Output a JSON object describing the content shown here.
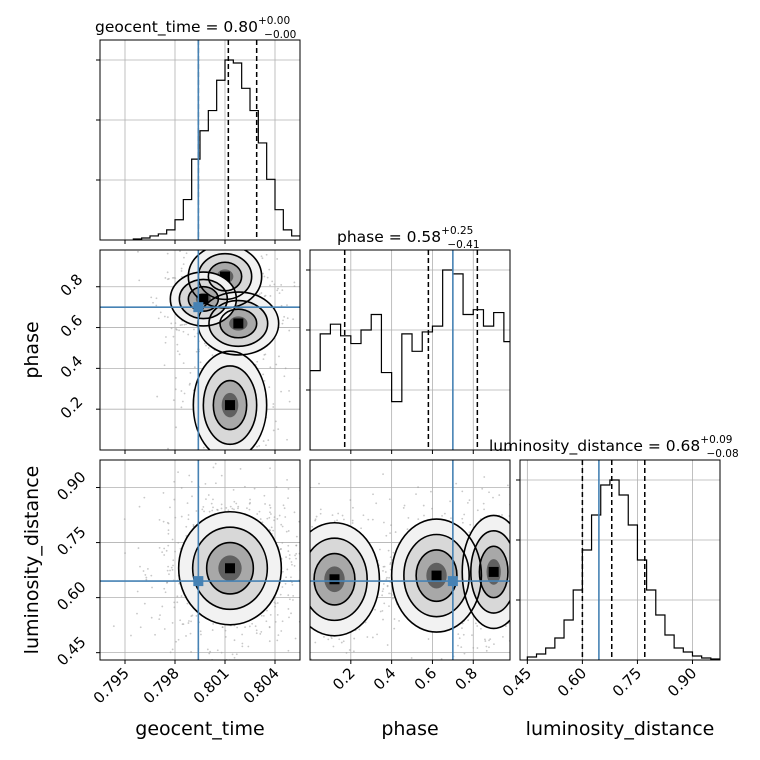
{
  "chart_data": {
    "type": "corner",
    "parameters": [
      "geocent_time",
      "phase",
      "luminosity_distance"
    ],
    "truths": {
      "geocent_time": 0.7994,
      "phase": 0.7,
      "luminosity_distance": 0.645
    },
    "truth_color": "#4682b4",
    "titles": [
      {
        "param": "geocent_time",
        "text": "geocent_time = 0.80",
        "plus": "+0.00",
        "minus": "−0.00"
      },
      {
        "param": "phase",
        "text": "phase = 0.58",
        "plus": "+0.25",
        "minus": "−0.41"
      },
      {
        "param": "luminosity_distance",
        "text": "luminosity_distance = 0.68",
        "plus": "+0.09",
        "minus": "−0.08"
      }
    ],
    "axes": {
      "geocent_time": {
        "range": [
          0.7935,
          0.8055
        ],
        "ticks": [
          "0.795",
          "0.798",
          "0.801",
          "0.804"
        ],
        "tick_values": [
          0.795,
          0.798,
          0.801,
          0.804
        ]
      },
      "phase": {
        "range": [
          0.0,
          0.98
        ],
        "ticks": [
          "0.2",
          "0.4",
          "0.6",
          "0.8"
        ],
        "tick_values": [
          0.2,
          0.4,
          0.6,
          0.8
        ]
      },
      "luminosity_distance": {
        "range": [
          0.43,
          0.975
        ],
        "ticks": [
          "0.45",
          "0.60",
          "0.75",
          "0.90"
        ],
        "tick_values": [
          0.45,
          0.6,
          0.75,
          0.9
        ]
      }
    },
    "grid": true,
    "histograms": [
      {
        "param": "geocent_time",
        "quantiles": [
          0.7994,
          0.8012,
          0.8029
        ],
        "bins": [
          0.7955,
          0.796,
          0.7965,
          0.797,
          0.7975,
          0.798,
          0.7985,
          0.799,
          0.7995,
          0.8,
          0.8005,
          0.801,
          0.8015,
          0.802,
          0.8025,
          0.803,
          0.8035,
          0.804,
          0.8045,
          0.805
        ],
        "counts": [
          1,
          2,
          4,
          6,
          10,
          20,
          40,
          80,
          108,
          128,
          158,
          178,
          175,
          150,
          128,
          96,
          60,
          30,
          10,
          4
        ]
      },
      {
        "param": "phase",
        "quantiles": [
          0.17,
          0.58,
          0.82
        ],
        "bins": [
          0.0,
          0.05,
          0.1,
          0.15,
          0.2,
          0.25,
          0.3,
          0.35,
          0.4,
          0.45,
          0.5,
          0.55,
          0.6,
          0.65,
          0.7,
          0.75,
          0.8,
          0.85,
          0.9,
          0.95
        ],
        "counts": [
          82,
          120,
          130,
          118,
          110,
          124,
          140,
          80,
          50,
          120,
          102,
          122,
          128,
          186,
          182,
          140,
          145,
          128,
          142,
          112
        ]
      },
      {
        "param": "luminosity_distance",
        "quantiles": [
          0.6,
          0.68,
          0.77
        ],
        "bins": [
          0.45,
          0.475,
          0.5,
          0.525,
          0.55,
          0.575,
          0.6,
          0.625,
          0.65,
          0.675,
          0.7,
          0.725,
          0.75,
          0.775,
          0.8,
          0.825,
          0.85,
          0.875,
          0.9,
          0.925,
          0.95
        ],
        "counts": [
          3,
          6,
          12,
          22,
          40,
          70,
          110,
          145,
          175,
          180,
          165,
          135,
          100,
          70,
          45,
          25,
          12,
          8,
          4,
          2,
          1
        ]
      }
    ],
    "joint": [
      {
        "x": "geocent_time",
        "y": "phase",
        "modes": [
          [
            0.801,
            0.85,
            0.001,
            0.07
          ],
          [
            0.8018,
            0.62,
            0.0011,
            0.07
          ],
          [
            0.7997,
            0.74,
            0.0009,
            0.06
          ],
          [
            0.8013,
            0.22,
            0.001,
            0.12
          ]
        ]
      },
      {
        "x": "geocent_time",
        "y": "luminosity_distance",
        "modes": [
          [
            0.8013,
            0.68,
            0.0014,
            0.07
          ]
        ]
      },
      {
        "x": "phase",
        "y": "luminosity_distance",
        "modes": [
          [
            0.12,
            0.65,
            0.1,
            0.07
          ],
          [
            0.62,
            0.66,
            0.1,
            0.07
          ],
          [
            0.9,
            0.67,
            0.07,
            0.07
          ]
        ]
      }
    ]
  }
}
